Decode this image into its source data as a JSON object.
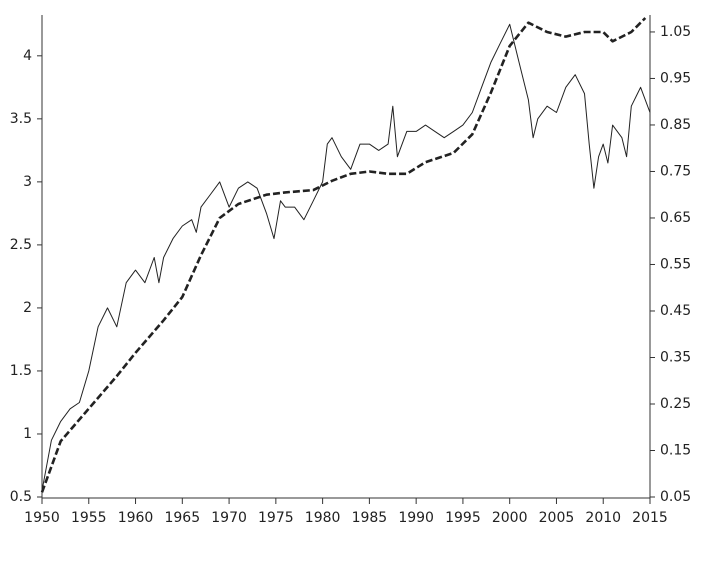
{
  "chart_data": {
    "type": "line",
    "xlim": [
      1950,
      2015
    ],
    "xticks": [
      1950,
      1955,
      1960,
      1965,
      1970,
      1975,
      1980,
      1985,
      1990,
      1995,
      2000,
      2005,
      2010,
      2015
    ],
    "ylim": [
      0.5,
      4.3
    ],
    "yticks": [
      0.5,
      1,
      1.5,
      2,
      2.5,
      3,
      3.5,
      4
    ],
    "y2lim": [
      0.05,
      1.08
    ],
    "y2ticks": [
      0.05,
      0.15,
      0.25,
      0.35,
      0.45,
      0.55,
      0.65,
      0.75,
      0.85,
      0.95,
      1.05
    ],
    "series": [
      {
        "color": "#222222",
        "dashed": false,
        "x": [
          1950,
          1951,
          1952,
          1953,
          1954,
          1955,
          1956,
          1957,
          1958,
          1959,
          1960,
          1961,
          1962,
          1962.5,
          1963,
          1964,
          1965,
          1966,
          1966.5,
          1967,
          1968,
          1969,
          1970,
          1971,
          1972,
          1973,
          1974,
          1974.8,
          1975.5,
          1976,
          1977,
          1978,
          1979,
          1980,
          1980.5,
          1981,
          1982,
          1983,
          1984,
          1985,
          1986,
          1987,
          1987.5,
          1988,
          1989,
          1990,
          1991,
          1992,
          1993,
          1994,
          1995,
          1996,
          1997,
          1998,
          1999,
          2000,
          2001,
          2002,
          2002.5,
          2003,
          2004,
          2005,
          2006,
          2007,
          2008,
          2008.5,
          2009,
          2009.5,
          2010,
          2010.5,
          2011,
          2012,
          2012.5,
          2013,
          2014,
          2014.5,
          2015
        ],
        "values": [
          0.55,
          0.95,
          1.1,
          1.2,
          1.25,
          1.5,
          1.85,
          2.0,
          1.85,
          2.2,
          2.3,
          2.2,
          2.4,
          2.2,
          2.4,
          2.55,
          2.65,
          2.7,
          2.6,
          2.8,
          2.9,
          3.0,
          2.8,
          2.95,
          3.0,
          2.95,
          2.75,
          2.55,
          2.85,
          2.8,
          2.8,
          2.7,
          2.85,
          3.0,
          3.3,
          3.35,
          3.2,
          3.1,
          3.3,
          3.3,
          3.25,
          3.3,
          3.6,
          3.2,
          3.4,
          3.4,
          3.45,
          3.4,
          3.35,
          3.4,
          3.45,
          3.55,
          3.75,
          3.95,
          4.1,
          4.25,
          3.95,
          3.65,
          3.35,
          3.5,
          3.6,
          3.55,
          3.75,
          3.85,
          3.7,
          3.3,
          2.95,
          3.2,
          3.3,
          3.15,
          3.45,
          3.35,
          3.2,
          3.6,
          3.75,
          3.65,
          3.55
        ]
      },
      {
        "color": "#222222",
        "dashed": true,
        "axis": "y2",
        "x": [
          1950,
          1952,
          1955,
          1958,
          1960,
          1963,
          1965,
          1967,
          1969,
          1971,
          1974,
          1976,
          1979,
          1981,
          1983,
          1985,
          1987,
          1989,
          1991,
          1994,
          1996,
          1998,
          2000,
          2002,
          2004,
          2006,
          2008,
          2010,
          2011,
          2013,
          2014.5
        ],
        "values": [
          0.06,
          0.17,
          0.24,
          0.31,
          0.36,
          0.43,
          0.48,
          0.57,
          0.65,
          0.68,
          0.7,
          0.705,
          0.71,
          0.73,
          0.745,
          0.75,
          0.745,
          0.745,
          0.77,
          0.79,
          0.83,
          0.92,
          1.02,
          1.07,
          1.05,
          1.04,
          1.05,
          1.05,
          1.03,
          1.05,
          1.08
        ]
      }
    ]
  }
}
